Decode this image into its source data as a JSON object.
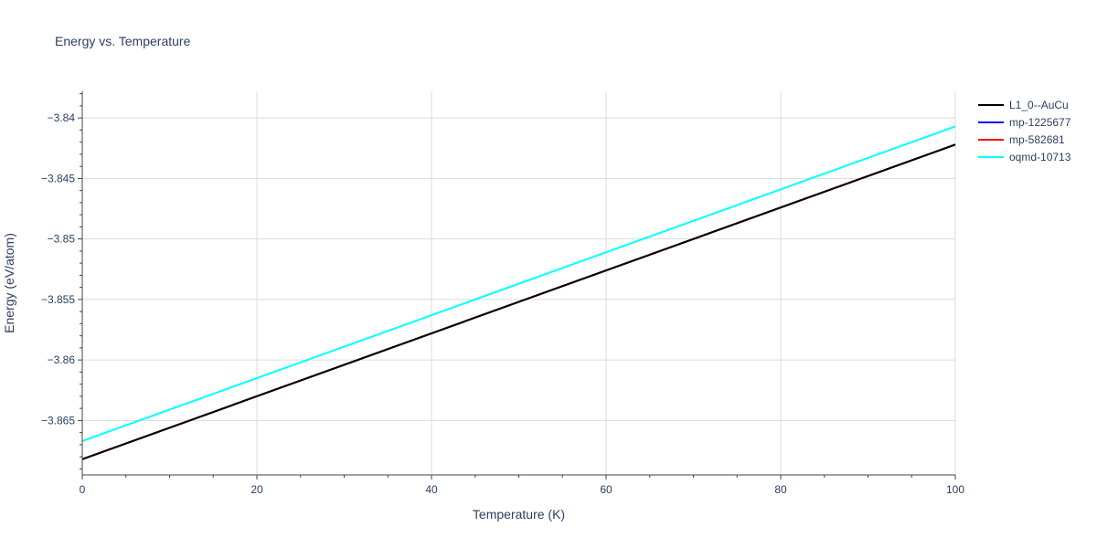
{
  "chart_data": {
    "type": "line",
    "title": "Energy vs. Temperature",
    "xlabel": "Temperature (K)",
    "ylabel": "Energy (eV/atom)",
    "xlim": [
      0,
      100
    ],
    "ylim": [
      -3.8695,
      -3.8378
    ],
    "x_ticks": [
      0,
      20,
      40,
      60,
      80,
      100
    ],
    "x_tick_labels": [
      "0",
      "20",
      "40",
      "60",
      "80",
      "100"
    ],
    "y_ticks": [
      -3.865,
      -3.86,
      -3.855,
      -3.85,
      -3.845,
      -3.84
    ],
    "y_tick_labels": [
      "−3.865",
      "−3.86",
      "−3.855",
      "−3.85",
      "−3.845",
      "−3.84"
    ],
    "grid": true,
    "legend_position": "top-right",
    "series": [
      {
        "name": "L1_0--AuCu",
        "color": "#000000",
        "x": [
          0,
          100
        ],
        "y": [
          -3.8682,
          -3.8422
        ]
      },
      {
        "name": "mp-1225677",
        "color": "#0000ff",
        "x": [
          0,
          100
        ],
        "y": [
          -3.8682,
          -3.8422
        ]
      },
      {
        "name": "mp-582681",
        "color": "#ff0000",
        "x": [
          0,
          100
        ],
        "y": [
          -3.8682,
          -3.8422
        ]
      },
      {
        "name": "oqmd-10713",
        "color": "#00ffff",
        "x": [
          0,
          100
        ],
        "y": [
          -3.8667,
          -3.8407
        ]
      }
    ]
  }
}
